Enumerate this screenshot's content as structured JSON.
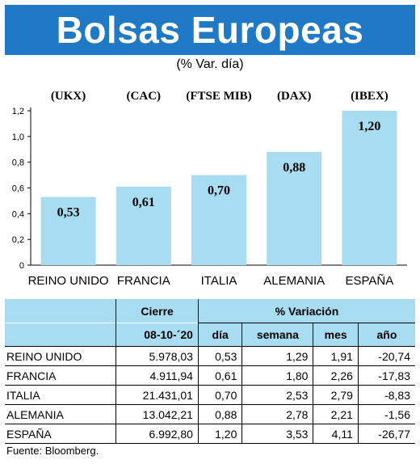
{
  "header": {
    "title": "Bolsas Europeas",
    "subtitle": "(% Var. día)"
  },
  "colors": {
    "title_bg": "#1f79c4",
    "bar_fill": "#a8ddf1",
    "table_header_bg": "#a8ddf1"
  },
  "chart_data": {
    "type": "bar",
    "title": "Bolsas Europeas",
    "subtitle": "(% Var. día)",
    "categories": [
      "REINO UNIDO",
      "FRANCIA",
      "ITALIA",
      "ALEMANIA",
      "ESPAÑA"
    ],
    "index_labels": [
      "(UKX)",
      "(CAC)",
      "(FTSE MIB)",
      "(DAX)",
      "(IBEX)"
    ],
    "values": [
      0.53,
      0.61,
      0.7,
      0.88,
      1.2
    ],
    "value_labels": [
      "0,53",
      "0,61",
      "0,70",
      "0,88",
      "1,20"
    ],
    "yticks": [
      0,
      0.2,
      0.4,
      0.6,
      0.8,
      1.0,
      1.2
    ],
    "ytick_labels": [
      "0",
      "0,2",
      "0,4",
      "0,6",
      "0,8",
      "1,0",
      "1,2"
    ],
    "ylim": [
      0,
      1.2
    ],
    "xlabel": "",
    "ylabel": "",
    "grid": false,
    "legend": "none"
  },
  "table": {
    "header_cierre": "Cierre",
    "header_variacion": "% Variación",
    "date": "08-10-´20",
    "col_dia": "día",
    "col_semana": "semana",
    "col_mes": "mes",
    "col_anio": "año",
    "rows": [
      {
        "pais": "REINO UNIDO",
        "cierre": "5.978,03",
        "dia": "0,53",
        "semana": "1,29",
        "mes": "1,91",
        "anio": "-20,74"
      },
      {
        "pais": "FRANCIA",
        "cierre": "4.911,94",
        "dia": "0,61",
        "semana": "1,80",
        "mes": "2,26",
        "anio": "-17,83"
      },
      {
        "pais": "ITALIA",
        "cierre": "21.431,01",
        "dia": "0,70",
        "semana": "2,53",
        "mes": "2,79",
        "anio": "-8,83"
      },
      {
        "pais": "ALEMANIA",
        "cierre": "13.042,21",
        "dia": "0,88",
        "semana": "2,78",
        "mes": "2,21",
        "anio": "-1,56"
      },
      {
        "pais": "ESPAÑA",
        "cierre": "6.992,80",
        "dia": "1,20",
        "semana": "3,53",
        "mes": "4,11",
        "anio": "-26,77"
      }
    ]
  },
  "source": "Fuente: Bloomberg."
}
